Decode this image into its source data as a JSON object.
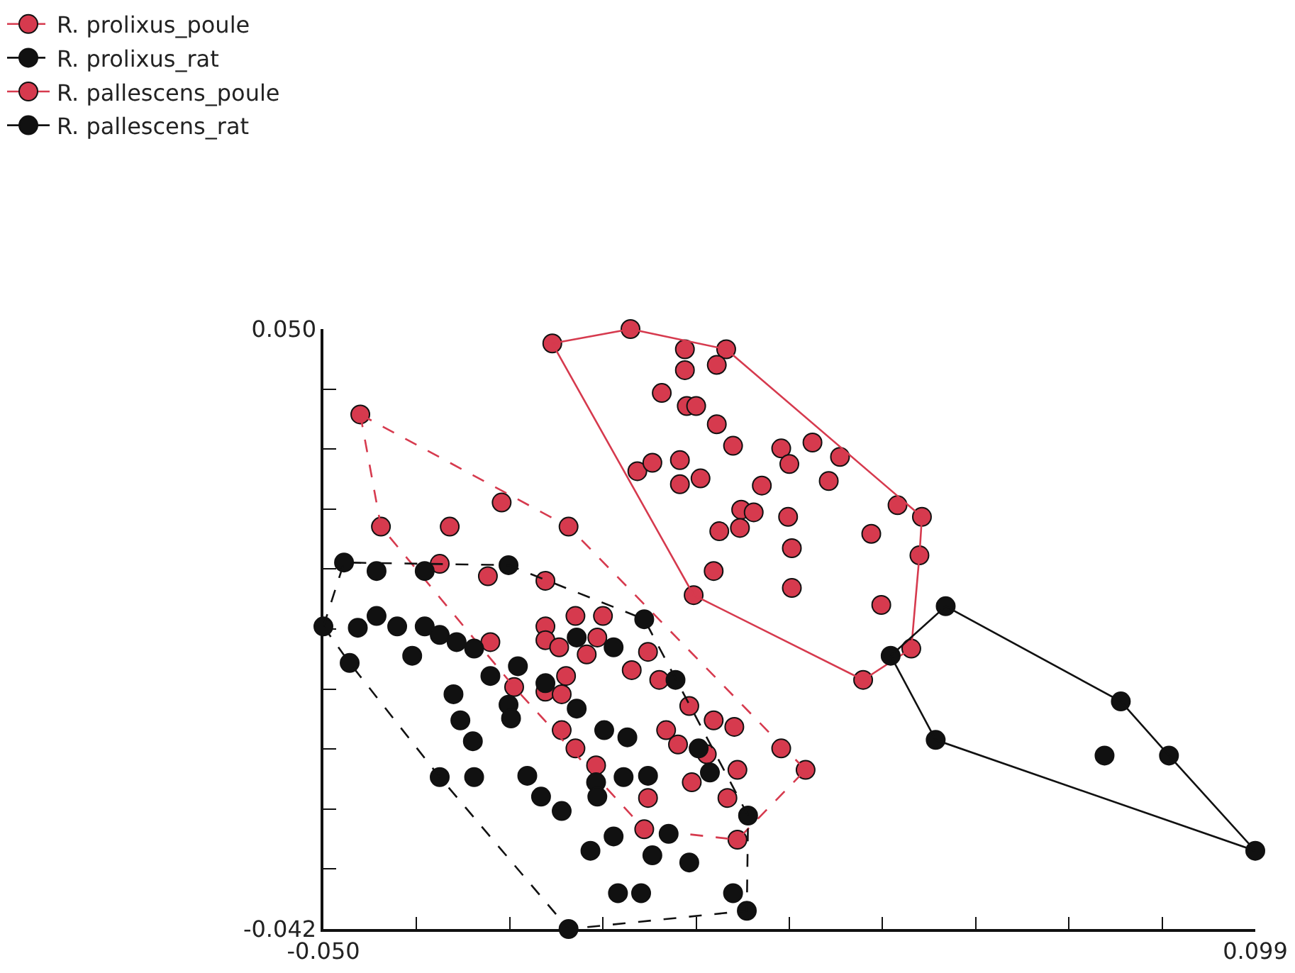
{
  "chart_data": {
    "type": "scatter",
    "marker": "circle",
    "legend": "top left",
    "xlim": [
      -0.05,
      0.099
    ],
    "xticks": [
      {
        "value": -0.05,
        "label": "-0.050"
      },
      {
        "value": -0.0351,
        "label": null
      },
      {
        "value": -0.0202,
        "label": null
      },
      {
        "value": -0.0053,
        "label": null
      },
      {
        "value": 0.0096,
        "label": null
      },
      {
        "value": 0.0245,
        "label": null
      },
      {
        "value": 0.0394,
        "label": null
      },
      {
        "value": 0.0543,
        "label": null
      },
      {
        "value": 0.0692,
        "label": null
      },
      {
        "value": 0.0841,
        "label": null
      },
      {
        "value": 0.099,
        "label": "0.099"
      }
    ],
    "ylim": [
      -0.042,
      0.05
    ],
    "yticks": [
      {
        "value": 0.05,
        "label": "0.050"
      },
      {
        "value": 0.0408,
        "label": null
      },
      {
        "value": 0.0316,
        "label": null
      },
      {
        "value": 0.0224,
        "label": null
      },
      {
        "value": 0.0132,
        "label": null
      },
      {
        "value": 0.004,
        "label": null
      },
      {
        "value": -0.0052,
        "label": null
      },
      {
        "value": -0.0144,
        "label": null
      },
      {
        "value": -0.0236,
        "label": null
      },
      {
        "value": -0.0328,
        "label": null
      },
      {
        "value": -0.042,
        "label": "-0.042"
      }
    ],
    "series": [
      {
        "name": "R. prolixus_poule",
        "color": "#d63a4e",
        "line_style": "dashed",
        "x": [
          -0.0441,
          -0.0408,
          -0.0298,
          -0.0215,
          -0.0108,
          -0.0314,
          -0.0237,
          -0.0145,
          -0.0233,
          -0.0097,
          -0.0053,
          -0.0145,
          -0.0145,
          -0.0123,
          -0.0079,
          -0.0062,
          0.0019,
          -0.0007,
          0.0037,
          -0.0112,
          -0.0195,
          -0.0145,
          -0.0119,
          0.0085,
          0.0124,
          0.0157,
          0.0048,
          0.0067,
          -0.0119,
          -0.0097,
          0.0232,
          0.0113,
          0.0162,
          -0.0064,
          0.0019,
          0.0089,
          0.0146,
          0.0162,
          0.0013,
          0.0271
        ],
        "values": [
          0.0369,
          0.0197,
          0.0197,
          0.0234,
          0.0197,
          0.014,
          0.0121,
          0.0114,
          0.002,
          0.006,
          0.006,
          0.0044,
          0.0023,
          0.0012,
          0.0001,
          0.0027,
          0.0005,
          -0.0023,
          -0.0038,
          -0.0032,
          -0.0049,
          -0.0056,
          -0.006,
          -0.0078,
          -0.01,
          -0.011,
          -0.0115,
          -0.0137,
          -0.0115,
          -0.0143,
          -0.0143,
          -0.0152,
          -0.0176,
          -0.0169,
          -0.0219,
          -0.0195,
          -0.0219,
          -0.0283,
          -0.0267,
          -0.0176
        ]
      },
      {
        "type": "line",
        "marker": "none",
        "color": "#d63a4e",
        "line_style": "dashed",
        "x": [
          -0.0441,
          -0.0108,
          0.0271
        ],
        "values": [
          0.0369,
          0.0197,
          -0.0176
        ]
      },
      {
        "type": "line",
        "marker": "none",
        "color": "#d63a4e",
        "line_style": "dashed",
        "x": [
          -0.0441,
          -0.0408,
          -0.0195,
          0.0013,
          0.0162,
          0.0271
        ],
        "values": [
          0.0369,
          0.0197,
          -0.0049,
          -0.0267,
          -0.0283,
          -0.0176
        ]
      },
      {
        "name": "R. prolixus_rat",
        "color": "#111111",
        "line_style": "dashed",
        "x": [
          -0.0467,
          -0.0415,
          -0.0338,
          -0.0204,
          -0.05,
          -0.0445,
          -0.0415,
          -0.0382,
          -0.0338,
          -0.0314,
          -0.0287,
          -0.0259,
          -0.0358,
          -0.0458,
          -0.0233,
          -0.0189,
          -0.0292,
          -0.0204,
          -0.02,
          -0.0281,
          -0.0261,
          -0.0314,
          -0.0259,
          -0.0174,
          -0.0152,
          -0.0119,
          -0.0073,
          -0.0036,
          0.0026,
          0.0085,
          -0.0029,
          0.0008,
          0.0155,
          0.0177,
          -0.0108,
          0.0052,
          -0.002,
          0.0019,
          0.01,
          0.0118,
          0.0179,
          -0.0145,
          -0.0095,
          -0.0051,
          -0.0014,
          -0.0064,
          -0.0062,
          0.0013,
          0.0063,
          -0.0036,
          -0.0095
        ],
        "values": [
          0.0142,
          0.0129,
          0.0129,
          0.0138,
          0.0044,
          0.0042,
          0.006,
          0.0044,
          0.0044,
          0.0031,
          0.002,
          0.001,
          -0.0001,
          -0.0012,
          -0.0032,
          -0.0017,
          -0.006,
          -0.0076,
          -0.0097,
          -0.01,
          -0.0132,
          -0.0187,
          -0.0187,
          -0.0185,
          -0.0217,
          -0.0239,
          -0.03,
          -0.0278,
          -0.0307,
          -0.0318,
          -0.0365,
          -0.0365,
          -0.0365,
          -0.0392,
          -0.042,
          -0.0274,
          -0.0187,
          -0.0185,
          -0.0143,
          -0.018,
          -0.0246,
          -0.0043,
          -0.0082,
          -0.0115,
          -0.0126,
          -0.0195,
          -0.0217,
          0.0055,
          -0.0038,
          0.0012,
          0.0027
        ]
      },
      {
        "type": "line",
        "marker": "none",
        "color": "#111111",
        "line_style": "dashed",
        "x": [
          -0.05,
          -0.0467,
          -0.0204,
          0.0013,
          0.0179
        ],
        "values": [
          0.0044,
          0.0142,
          0.0138,
          0.0055,
          -0.0246
        ]
      },
      {
        "type": "line",
        "marker": "none",
        "color": "#111111",
        "line_style": "dashed",
        "x": [
          -0.05,
          -0.0458,
          -0.0314,
          -0.0108,
          0.0177,
          0.0179
        ],
        "values": [
          0.0044,
          -0.0012,
          -0.0187,
          -0.042,
          -0.0392,
          -0.0246
        ]
      },
      {
        "name": "R. pallescens_poule",
        "color": "#d63a4e",
        "line_style": "solid",
        "x": [
          -0.0134,
          -0.0009,
          0.0078,
          0.0078,
          0.0144,
          0.0129,
          0.0041,
          0.0081,
          0.0096,
          0.0129,
          0.0155,
          0.0232,
          0.0245,
          0.0282,
          0.0326,
          0.0002,
          0.0026,
          0.007,
          0.007,
          0.0103,
          0.0201,
          0.0308,
          0.0168,
          0.0188,
          0.0133,
          0.0166,
          0.0243,
          0.0249,
          0.0418,
          0.0457,
          0.0376,
          0.0453,
          0.0124,
          0.0249,
          0.0092,
          0.0392,
          0.044,
          0.0363
        ],
        "values": [
          0.0478,
          0.05,
          0.0469,
          0.0437,
          0.0469,
          0.0445,
          0.0402,
          0.0382,
          0.0382,
          0.0354,
          0.0321,
          0.0317,
          0.0293,
          0.0326,
          0.0304,
          0.0282,
          0.0295,
          0.0299,
          0.0262,
          0.0271,
          0.026,
          0.0267,
          0.0223,
          0.0219,
          0.019,
          0.0195,
          0.0212,
          0.0164,
          0.023,
          0.0212,
          0.0186,
          0.0153,
          0.0129,
          0.0103,
          0.0092,
          0.0077,
          0.001,
          -0.0038
        ]
      },
      {
        "type": "line",
        "marker": "none",
        "color": "#d63a4e",
        "line_style": "solid",
        "x": [
          -0.0134,
          -0.0009,
          0.0144,
          0.0457
        ],
        "values": [
          0.0478,
          0.05,
          0.0469,
          0.0212
        ]
      },
      {
        "type": "line",
        "marker": "none",
        "color": "#d63a4e",
        "line_style": "solid",
        "x": [
          -0.0134,
          0.0092,
          0.0363,
          0.044,
          0.0453,
          0.0457
        ],
        "values": [
          0.0478,
          0.0092,
          -0.0038,
          0.001,
          0.0153,
          0.0212
        ]
      },
      {
        "name": "R. pallescens_rat",
        "color": "#111111",
        "line_style": "solid",
        "x": [
          0.0495,
          0.0407,
          0.0479,
          0.0775,
          0.0749,
          0.0852,
          0.099
        ],
        "values": [
          0.0075,
          -0.0001,
          -0.013,
          -0.0071,
          -0.0154,
          -0.0154,
          -0.03
        ]
      },
      {
        "type": "line",
        "marker": "none",
        "color": "#111111",
        "line_style": "solid",
        "x": [
          0.0407,
          0.0495,
          0.0775,
          0.0852,
          0.099
        ],
        "values": [
          -0.0001,
          0.0075,
          -0.0071,
          -0.0154,
          -0.03
        ]
      },
      {
        "type": "line",
        "marker": "none",
        "color": "#111111",
        "line_style": "solid",
        "x": [
          0.0407,
          0.0479,
          0.099
        ],
        "values": [
          -0.0001,
          -0.013,
          -0.03
        ]
      }
    ]
  }
}
